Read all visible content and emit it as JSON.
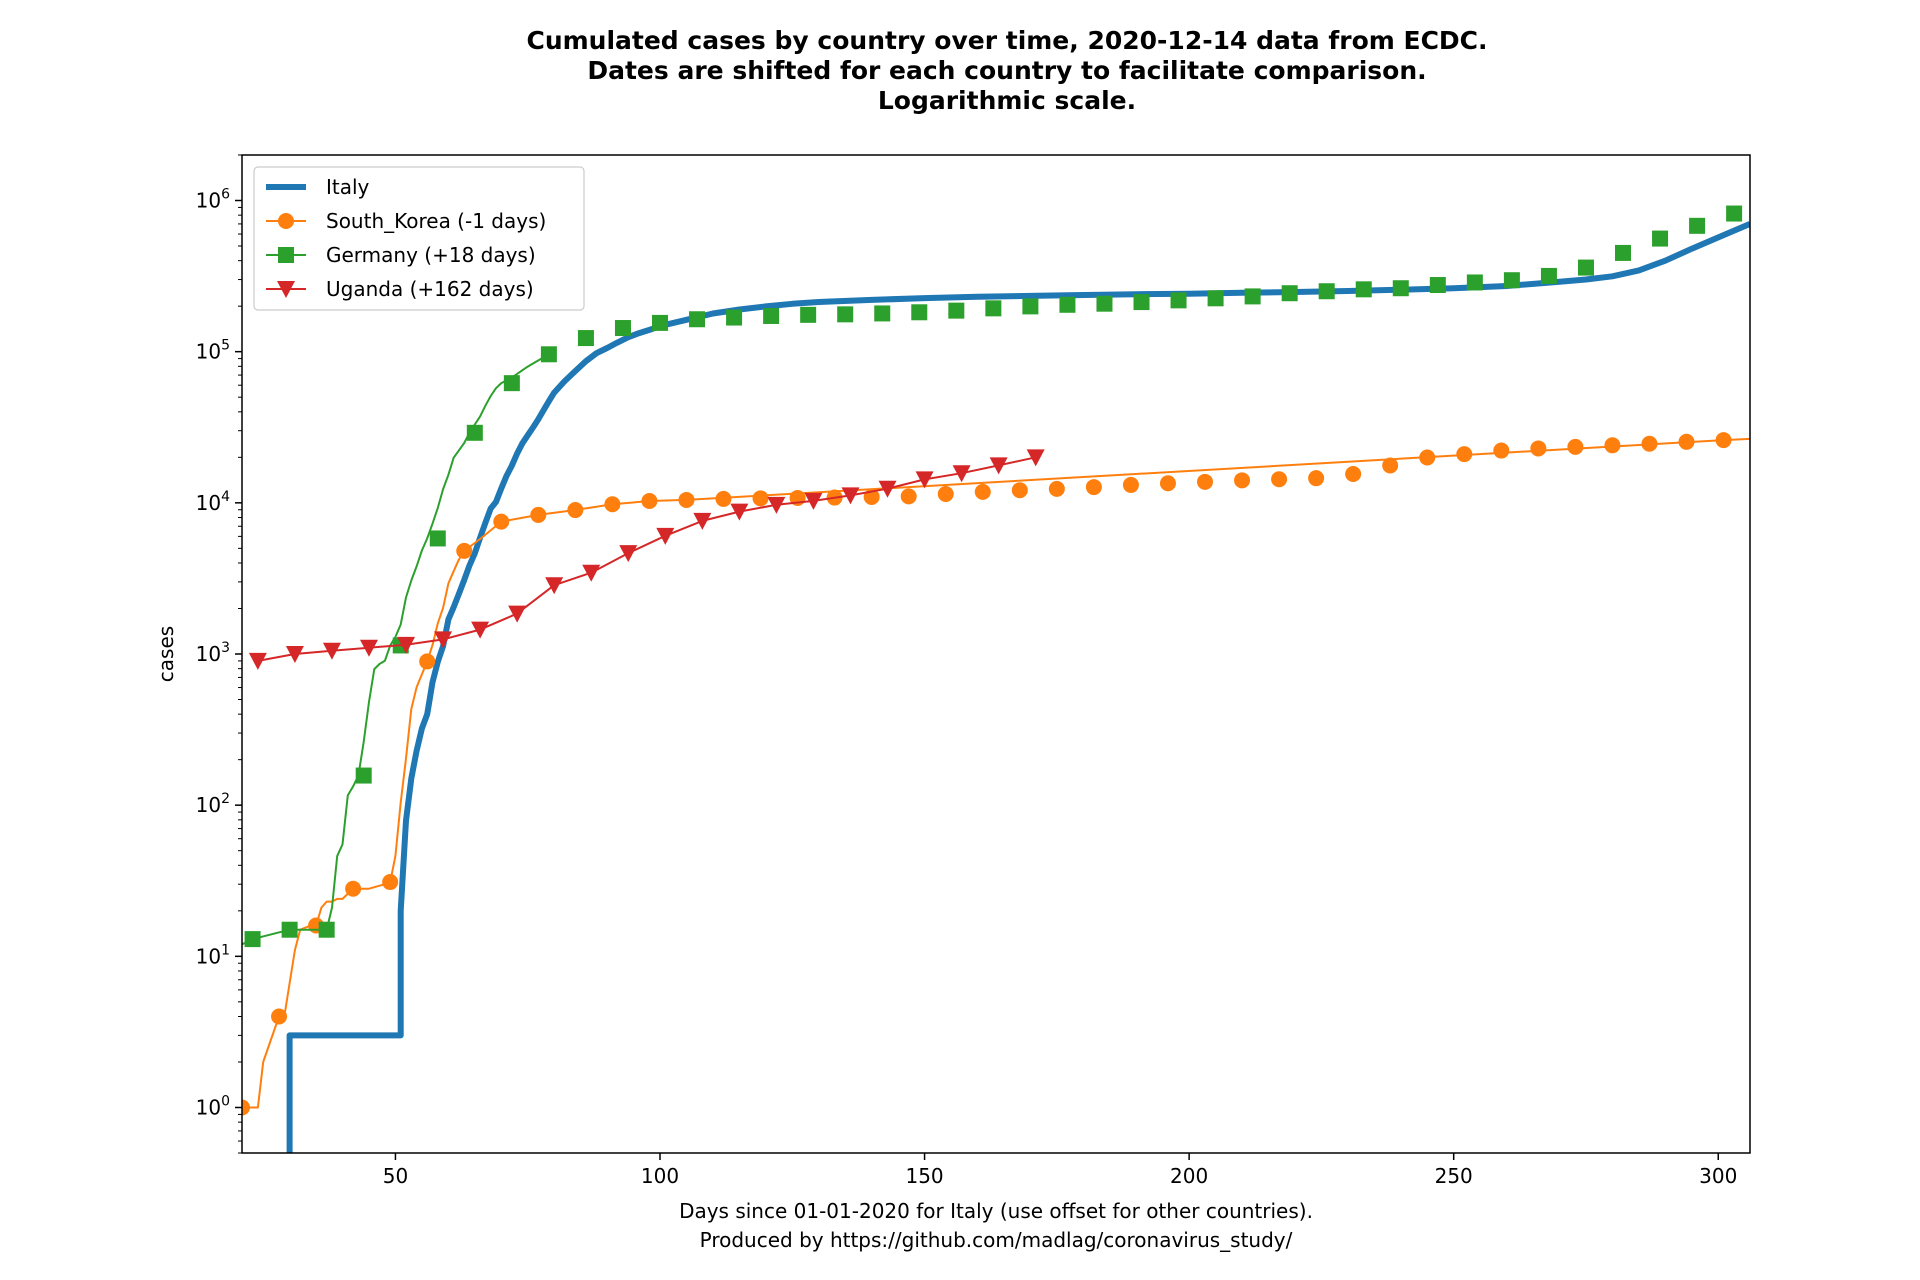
{
  "chart_data": {
    "type": "line",
    "title": [
      "Cumulated cases by country over time, 2020-12-14 data from ECDC.",
      "Dates are shifted for each country to facilitate comparison.",
      "Logarithmic scale."
    ],
    "xlabel": [
      "Days since 01-01-2020 for Italy (use offset for other countries).",
      "Produced by https://github.com/madlag/coronavirus_study/"
    ],
    "ylabel": "cases",
    "xlim": [
      21,
      306
    ],
    "ylim": [
      0.5,
      2000000
    ],
    "yscale": "log",
    "grid": false,
    "legend_position": "top-left",
    "x_ticks": [
      50,
      100,
      150,
      200,
      250,
      300
    ],
    "y_ticks": [
      {
        "value": 1,
        "mantissa": "10",
        "exponent": "0"
      },
      {
        "value": 10,
        "mantissa": "10",
        "exponent": "1"
      },
      {
        "value": 100,
        "mantissa": "10",
        "exponent": "2"
      },
      {
        "value": 1000,
        "mantissa": "10",
        "exponent": "3"
      },
      {
        "value": 10000,
        "mantissa": "10",
        "exponent": "4"
      },
      {
        "value": 100000,
        "mantissa": "10",
        "exponent": "5"
      },
      {
        "value": 1000000,
        "mantissa": "10",
        "exponent": "6"
      }
    ],
    "series": [
      {
        "name": "Italy",
        "color": "#1f77b4",
        "marker": "none",
        "line_width": "thick",
        "x": [
          30,
          30,
          32,
          40,
          48,
          51,
          51,
          52,
          53,
          54,
          55,
          56,
          57,
          58,
          59,
          60,
          61,
          62,
          63,
          64,
          65,
          66,
          67,
          68,
          69,
          70,
          71,
          72,
          73,
          74,
          75,
          76,
          77,
          78,
          79,
          80,
          82,
          84,
          86,
          88,
          90,
          92,
          94,
          96,
          98,
          100,
          105,
          110,
          115,
          120,
          125,
          130,
          140,
          150,
          160,
          170,
          180,
          190,
          200,
          210,
          220,
          230,
          240,
          250,
          260,
          270,
          275,
          280,
          285,
          290,
          295,
          300,
          306
        ],
        "y": [
          0.5,
          3,
          3,
          3,
          3,
          3,
          20,
          79,
          150,
          229,
          322,
          400,
          650,
          888,
          1128,
          1694,
          2036,
          2502,
          3089,
          3858,
          4636,
          5883,
          7375,
          9172,
          10149,
          12462,
          15113,
          17660,
          21157,
          24747,
          27980,
          31506,
          35713,
          41035,
          47021,
          53578,
          63927,
          74386,
          86498,
          97689,
          105792,
          115242,
          124632,
          132547,
          139422,
          147577,
          162488,
          178972,
          189973,
          199414,
          207428,
          213013,
          220000,
          226000,
          231000,
          234000,
          237000,
          240000,
          242000,
          245000,
          248000,
          252000,
          257000,
          263000,
          272000,
          290000,
          300000,
          315000,
          345000,
          400000,
          480000,
          570000,
          700000
        ]
      },
      {
        "name": "South_Korea (-1 days)",
        "color": "#ff7f0e",
        "marker": "circle",
        "x": [
          21,
          28,
          35,
          42,
          49,
          56,
          63,
          70,
          77,
          84,
          91,
          98,
          105,
          112,
          119,
          126,
          133,
          140,
          147,
          154,
          161,
          168,
          175,
          182,
          189,
          196,
          203,
          210,
          217,
          224,
          231,
          238,
          245,
          252,
          259,
          266,
          273,
          280,
          287,
          294,
          301
        ],
        "y": [
          1,
          4,
          16,
          28,
          31,
          893,
          4812,
          7513,
          8320,
          8961,
          9786,
          10284,
          10450,
          10613,
          10708,
          10774,
          10840,
          10936,
          11037,
          11441,
          11814,
          12121,
          12373,
          12715,
          13137,
          13479,
          13771,
          14092,
          14336,
          14562,
          15515,
          17665,
          19947,
          21010,
          22176,
          22893,
          23455,
          24027,
          24606,
          25333,
          26000
        ],
        "line_x": [
          21,
          24,
          25,
          28,
          29,
          31,
          32,
          34,
          35,
          36,
          37,
          38,
          39,
          40,
          42,
          45,
          48,
          49,
          50,
          51,
          52,
          53,
          54,
          56,
          57,
          58,
          59,
          60,
          61,
          62,
          63,
          66,
          70,
          77,
          84,
          91,
          98,
          105,
          301,
          306
        ],
        "line_y": [
          1,
          1,
          2,
          4,
          4,
          11,
          15,
          16,
          16,
          21,
          23,
          23,
          24,
          24,
          28,
          28,
          30,
          31,
          46,
          104,
          204,
          433,
          602,
          893,
          1146,
          1595,
          2022,
          2931,
          3526,
          4212,
          4812,
          5766,
          7513,
          8320,
          8961,
          9786,
          10284,
          10450,
          26000,
          26500
        ]
      },
      {
        "name": "Germany (+18 days)",
        "color": "#2ca02c",
        "marker": "square",
        "x": [
          23,
          30,
          37,
          44,
          51,
          58,
          65,
          72,
          79,
          86,
          93,
          100,
          107,
          114,
          121,
          128,
          135,
          142,
          149,
          156,
          163,
          170,
          177,
          184,
          191,
          198,
          205,
          212,
          219,
          226,
          233,
          240,
          247,
          254,
          261,
          268,
          275,
          282,
          289,
          296,
          303
        ],
        "y": [
          13,
          15,
          15,
          157,
          1139,
          5813,
          29056,
          61913,
          96092,
          123016,
          143342,
          154999,
          163860,
          168162,
          172239,
          175233,
          176551,
          179021,
          182196,
          186839,
          193475,
          199332,
          204276,
          207707,
          212828,
          218519,
          225404,
          232082,
          243599,
          251058,
          258480,
          262840,
          276000,
          287000,
          297000,
          317000,
          360000,
          450000,
          560000,
          680000,
          820000
        ],
        "line_x": [
          21,
          23,
          30,
          37,
          38,
          39,
          40,
          41,
          42,
          43,
          44,
          45,
          46,
          47,
          48,
          49,
          50,
          51,
          52,
          53,
          54,
          55,
          56,
          57,
          58,
          59,
          60,
          61,
          62,
          63,
          64,
          65,
          66,
          67,
          68,
          69,
          70,
          72,
          75,
          79
        ],
        "line_y": [
          12,
          13,
          15,
          15,
          21,
          46,
          55,
          116,
          133,
          157,
          262,
          482,
          795,
          860,
          902,
          1139,
          1296,
          1567,
          2369,
          3062,
          3795,
          4838,
          5813,
          7272,
          9257,
          12327,
          15320,
          19848,
          22213,
          24873,
          29056,
          32986,
          37323,
          43938,
          50871,
          57298,
          61913,
          67366,
          79696,
          96092
        ]
      },
      {
        "name": "Uganda (+162 days)",
        "color": "#d62728",
        "marker": "triangle-down",
        "x": [
          24,
          31,
          38,
          45,
          52,
          59,
          66,
          73,
          80,
          87,
          94,
          101,
          108,
          115,
          122,
          129,
          136,
          143,
          150,
          157,
          164,
          171
        ],
        "y": [
          900,
          1000,
          1050,
          1100,
          1150,
          1250,
          1450,
          1850,
          2850,
          3450,
          4650,
          6050,
          7600,
          8750,
          9700,
          10300,
          11200,
          12400,
          14300,
          15700,
          17700,
          20000
        ]
      }
    ]
  }
}
